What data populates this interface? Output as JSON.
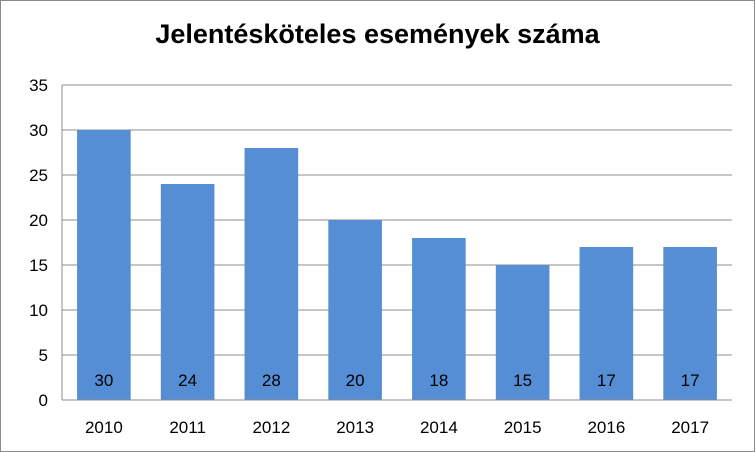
{
  "chart_data": {
    "type": "bar",
    "title": "Jelentésköteles események száma",
    "xlabel": "",
    "ylabel": "",
    "categories": [
      "2010",
      "2011",
      "2012",
      "2013",
      "2014",
      "2015",
      "2016",
      "2017"
    ],
    "values": [
      30,
      24,
      28,
      20,
      18,
      15,
      17,
      17
    ],
    "ylim": [
      0,
      35
    ],
    "yticks": [
      0,
      5,
      10,
      15,
      20,
      25,
      30,
      35
    ],
    "grid": true,
    "legend": "none",
    "bar_color": "#558ed5",
    "data_labels": true
  }
}
